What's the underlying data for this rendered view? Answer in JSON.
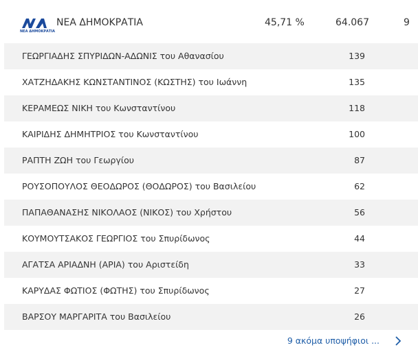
{
  "header": {
    "logo_text": "ΝΕΑ ΔΗΜΟΚΡΑΤΙΑ",
    "party": "ΝΕΑ ΔΗΜΟΚΡΑΤΙΑ",
    "percent": "45,71 %",
    "votes": "64.067",
    "seats": 9
  },
  "table": {
    "rows": [
      [
        "ΓΕΩΡΓΙΑΔΗΣ ΣΠΥΡΙΔΩΝ-ΑΔΩΝΙΣ του Αθανασίου",
        139
      ],
      [
        "ΧΑΤΖΗΔΑΚΗΣ ΚΩΝΣΤΑΝΤΙΝΟΣ (ΚΩΣΤΗΣ) του Ιωάννη",
        135
      ],
      [
        "ΚΕΡΑΜΕΩΣ ΝΙΚΗ του Κωνσταντίνου",
        118
      ],
      [
        "ΚΑΙΡΙΔΗΣ ΔΗΜΗΤΡΙΟΣ του Κωνσταντίνου",
        100
      ],
      [
        "ΡΑΠΤΗ ΖΩΗ του Γεωργίου",
        87
      ],
      [
        "ΡΟΥΣΟΠΟΥΛΟΣ ΘΕΟΔΩΡΟΣ (ΘΟΔΩΡΟΣ) του Βασιλείου",
        62
      ],
      [
        "ΠΑΠΑΘΑΝΑΣΗΣ ΝΙΚΟΛΑΟΣ (ΝΙΚΟΣ) του Χρήστου",
        56
      ],
      [
        "ΚΟΥΜΟΥΤΣΑΚΟΣ ΓΕΩΡΓΙΟΣ του Σπυρίδωνος",
        44
      ],
      [
        "ΑΓΑΤΣΑ ΑΡΙΑΔΝΗ (ΑΡΙΑ) του Αριστείδη",
        33
      ],
      [
        "ΚΑΡΥΔΑΣ ΦΩΤΙΟΣ (ΦΩΤΗΣ) του Σπυρίδωνος",
        27
      ],
      [
        "ΒΑΡΣΟΥ ΜΑΡΓΑΡΙΤΑ του Βασιλείου",
        26
      ]
    ]
  },
  "footer": {
    "more": "9 ακόμα υποψήφιοι ..."
  }
}
